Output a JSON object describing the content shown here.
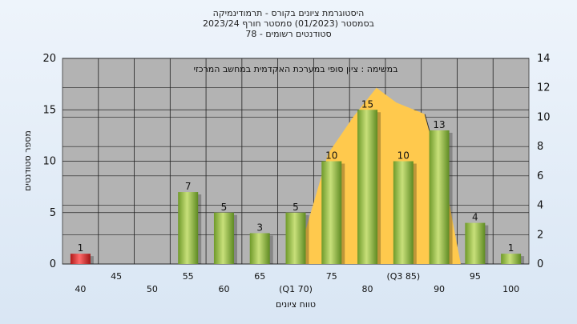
{
  "chart_data": {
    "type": "bar",
    "title_lines": [
      "היסטוגרמת ציונים בקורס - תרמודינמיקה",
      "בסמסטר  (01/2023)  סמסטר חורף  2023/24",
      "סטודנטים רשומים - 78"
    ],
    "annotation": "במשימה : ציון סופי במערכת האקדמית במחשב המרכזי",
    "xlabel": "טווח ציונים",
    "ylabel": "מספר סטודנטים",
    "categories": [
      "40",
      "45",
      "50",
      "55",
      "60",
      "65",
      "(Q1 70)",
      "75",
      "80",
      "(Q3 85)",
      "90",
      "95",
      "100"
    ],
    "values": [
      1,
      0,
      0,
      7,
      5,
      3,
      5,
      10,
      15,
      10,
      13,
      4,
      1
    ],
    "value_labels": [
      "1",
      "",
      "",
      "7",
      "5",
      "3",
      "5",
      "10",
      "15",
      "10",
      "13",
      "4",
      "1"
    ],
    "bar_colors": [
      "#d42b2b",
      "#8fbf3f",
      "#8fbf3f",
      "#8fbf3f",
      "#8fbf3f",
      "#8fbf3f",
      "#8fbf3f",
      "#8fbf3f",
      "#8fbf3f",
      "#8fbf3f",
      "#8fbf3f",
      "#8fbf3f",
      "#8fbf3f"
    ],
    "ylim": [
      0,
      20
    ],
    "yticks": [
      0,
      5,
      10,
      15,
      20
    ],
    "y2lim": [
      0,
      14
    ],
    "y2ticks": [
      0,
      2,
      4,
      6,
      8,
      10,
      12,
      14
    ],
    "distribution_curve": {
      "color": "#ffc94d",
      "points": [
        [
          6,
          0
        ],
        [
          6.9,
          7.5
        ],
        [
          7.6,
          10
        ],
        [
          8.25,
          12
        ],
        [
          8.8,
          11
        ],
        [
          9.6,
          10.2
        ],
        [
          10.25,
          4.5
        ],
        [
          10.6,
          0
        ]
      ]
    },
    "grid": true,
    "plot_background": "#b3b3b3"
  }
}
